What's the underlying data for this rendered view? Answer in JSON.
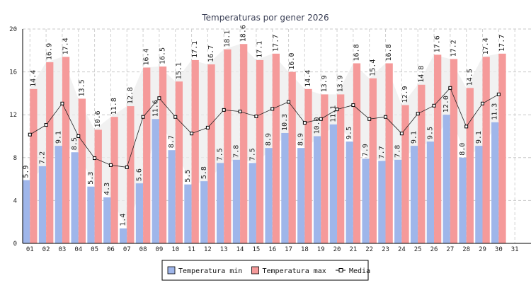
{
  "chart_data": {
    "type": "bar",
    "title": "Temperaturas por gener 2026",
    "xlabel": "",
    "ylabel": "",
    "ylim": [
      0,
      20
    ],
    "yticks": [
      0,
      4,
      8,
      12,
      16,
      20
    ],
    "categories": [
      "01",
      "02",
      "03",
      "04",
      "05",
      "06",
      "07",
      "08",
      "09",
      "10",
      "11",
      "12",
      "13",
      "14",
      "15",
      "16",
      "17",
      "18",
      "19",
      "20",
      "21",
      "22",
      "23",
      "24",
      "25",
      "26",
      "27",
      "28",
      "29",
      "30",
      "31"
    ],
    "series": [
      {
        "name": "Temperatura min",
        "kind": "bar",
        "color": "#9fb6ea",
        "values": [
          5.9,
          7.2,
          9.1,
          8.5,
          5.3,
          4.3,
          1.4,
          5.6,
          11.6,
          8.7,
          5.5,
          5.8,
          7.5,
          7.8,
          7.5,
          8.9,
          10.3,
          8.9,
          10.0,
          11.1,
          9.5,
          7.9,
          7.7,
          7.8,
          9.1,
          9.5,
          12.0,
          8.0,
          9.1,
          11.3,
          null
        ]
      },
      {
        "name": "Temperatura max",
        "kind": "bar",
        "color": "#f59a9a",
        "values": [
          14.4,
          16.9,
          17.4,
          13.5,
          10.6,
          11.8,
          12.8,
          16.4,
          16.5,
          15.1,
          17.1,
          16.7,
          18.1,
          18.6,
          17.1,
          17.7,
          16.0,
          14.4,
          13.9,
          13.9,
          16.8,
          15.4,
          16.8,
          12.9,
          14.8,
          17.6,
          17.2,
          14.5,
          17.4,
          17.7,
          null
        ]
      },
      {
        "name": "Media",
        "kind": "line",
        "color": "#000000",
        "values": [
          10.15,
          11.05,
          13.05,
          10.0,
          7.95,
          7.3,
          7.1,
          11.8,
          13.55,
          11.8,
          10.25,
          10.8,
          12.45,
          12.3,
          11.85,
          12.55,
          13.2,
          11.25,
          11.6,
          12.5,
          12.9,
          11.6,
          11.8,
          10.25,
          12.1,
          12.85,
          14.5,
          10.9,
          13.05,
          13.9,
          null
        ]
      }
    ],
    "data_labels": {
      "min": [
        "5.9",
        "7.2",
        "9.1",
        "8.5",
        "5.3",
        "4.3",
        "1.4",
        "5.6",
        "11.6",
        "8.7",
        "5.5",
        "5.8",
        "7.5",
        "7.8",
        "7.5",
        "8.9",
        "10.3",
        "8.9",
        "10.0",
        "11.1",
        "9.5",
        "7.9",
        "7.7",
        "7.8",
        "9.1",
        "9.5",
        "12.0",
        "8.0",
        "9.1",
        "11.3",
        ""
      ],
      "max": [
        "14.4",
        "16.9",
        "17.4",
        "13.5",
        "10.6",
        "11.8",
        "12.8",
        "16.4",
        "16.5",
        "15.1",
        "17.1",
        "16.7",
        "18.1",
        "18.6",
        "17.1",
        "17.7",
        "16.0",
        "14.4",
        "13.9",
        "13.9",
        "16.8",
        "15.4",
        "16.8",
        "12.9",
        "14.8",
        "17.6",
        "17.2",
        "14.5",
        "17.4",
        "17.7",
        ""
      ]
    },
    "legend_position": "bottom-center",
    "grid": true
  }
}
